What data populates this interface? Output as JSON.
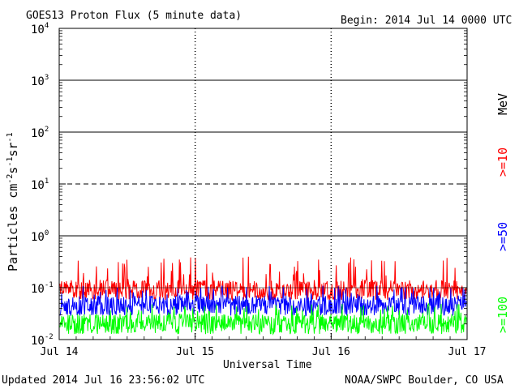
{
  "header": {
    "title": "GOES13 Proton Flux (5 minute data)",
    "begin": "Begin: 2014 Jul 14 0000 UTC"
  },
  "footer": {
    "updated": "Updated 2014 Jul 16 23:56:02 UTC",
    "credit": "NOAA/SWPC Boulder, CO USA"
  },
  "legend": {
    "unit": "MeV",
    "items": [
      {
        "label": ">=10",
        "color": "#ff0000"
      },
      {
        "label": ">=50",
        "color": "#0000ff"
      },
      {
        "label": ">=100",
        "color": "#00ff00"
      }
    ]
  },
  "chart_data": {
    "type": "line",
    "title": "GOES13 Proton Flux (5 minute data)",
    "xlabel": "Universal Time",
    "ylabel": "Particles cm-2s-1sr-1",
    "yscale": "log",
    "ylim": [
      0.01,
      10000
    ],
    "xlim": [
      0,
      3
    ],
    "x_ticks": [
      "Jul 14",
      "Jul 15",
      "Jul 16",
      "Jul 17"
    ],
    "y_ticks": [
      {
        "value": 0.01,
        "base": "10",
        "exp": "-2"
      },
      {
        "value": 0.1,
        "base": "10",
        "exp": "-1"
      },
      {
        "value": 1,
        "base": "10",
        "exp": "0"
      },
      {
        "value": 10,
        "base": "10",
        "exp": "1"
      },
      {
        "value": 100,
        "base": "10",
        "exp": "2"
      },
      {
        "value": 1000,
        "base": "10",
        "exp": "3"
      },
      {
        "value": 10000,
        "base": "10",
        "exp": "4"
      }
    ],
    "threshold_lines": [
      {
        "value": 10,
        "style": "dashed"
      },
      {
        "value": 1,
        "style": "solid"
      },
      {
        "value": 100,
        "style": "solid"
      },
      {
        "value": 1000,
        "style": "solid"
      }
    ],
    "series": [
      {
        "name": ">=10 MeV",
        "color": "#ff0000",
        "typical": 0.09,
        "range": [
          0.055,
          0.4
        ]
      },
      {
        "name": ">=50 MeV",
        "color": "#0000ff",
        "typical": 0.045,
        "range": [
          0.025,
          0.11
        ]
      },
      {
        "name": ">=100 MeV",
        "color": "#00ff00",
        "typical": 0.02,
        "range": [
          0.012,
          0.05
        ]
      }
    ]
  }
}
